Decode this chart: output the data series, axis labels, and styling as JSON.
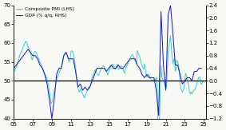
{
  "pmi_color": "#3ccfcf",
  "gdp_color": "#1414c8",
  "hline_y": 50,
  "ylim_left": [
    40,
    70
  ],
  "ylim_right": [
    -1.2,
    2.4
  ],
  "xticks": [
    2005,
    2007,
    2009,
    2011,
    2013,
    2015,
    2017,
    2019,
    2021,
    2023,
    2025
  ],
  "xticklabels": [
    "05",
    "07",
    "09",
    "11",
    "13",
    "15",
    "17",
    "19",
    "21",
    "23",
    "25"
  ],
  "yticks_left": [
    40,
    45,
    50,
    55,
    60,
    65,
    70
  ],
  "yticks_right": [
    -1.2,
    -0.8,
    -0.4,
    0.0,
    0.4,
    0.8,
    1.2,
    1.6,
    2.0,
    2.4
  ],
  "legend_entries": [
    "Composite PMI (LHS)",
    "GDP (% q/q, RHS)"
  ],
  "bg_color": "#f8f8f4",
  "pmi_x": [
    2005.0,
    2005.083,
    2005.167,
    2005.25,
    2005.333,
    2005.417,
    2005.5,
    2005.583,
    2005.667,
    2005.75,
    2005.833,
    2005.917,
    2006.0,
    2006.083,
    2006.167,
    2006.25,
    2006.333,
    2006.417,
    2006.5,
    2006.583,
    2006.667,
    2006.75,
    2006.833,
    2006.917,
    2007.0,
    2007.083,
    2007.167,
    2007.25,
    2007.333,
    2007.417,
    2007.5,
    2007.583,
    2007.667,
    2007.75,
    2007.833,
    2007.917,
    2008.0,
    2008.083,
    2008.167,
    2008.25,
    2008.333,
    2008.417,
    2008.5,
    2008.583,
    2008.667,
    2008.75,
    2008.833,
    2008.917,
    2009.0,
    2009.083,
    2009.167,
    2009.25,
    2009.333,
    2009.417,
    2009.5,
    2009.583,
    2009.667,
    2009.75,
    2009.833,
    2009.917,
    2010.0,
    2010.083,
    2010.167,
    2010.25,
    2010.333,
    2010.417,
    2010.5,
    2010.583,
    2010.667,
    2010.75,
    2010.833,
    2010.917,
    2011.0,
    2011.083,
    2011.167,
    2011.25,
    2011.333,
    2011.417,
    2011.5,
    2011.583,
    2011.667,
    2011.75,
    2011.833,
    2011.917,
    2012.0,
    2012.083,
    2012.167,
    2012.25,
    2012.333,
    2012.417,
    2012.5,
    2012.583,
    2012.667,
    2012.75,
    2012.833,
    2012.917,
    2013.0,
    2013.083,
    2013.167,
    2013.25,
    2013.333,
    2013.417,
    2013.5,
    2013.583,
    2013.667,
    2013.75,
    2013.833,
    2013.917,
    2014.0,
    2014.083,
    2014.167,
    2014.25,
    2014.333,
    2014.417,
    2014.5,
    2014.583,
    2014.667,
    2014.75,
    2014.833,
    2014.917,
    2015.0,
    2015.083,
    2015.167,
    2015.25,
    2015.333,
    2015.417,
    2015.5,
    2015.583,
    2015.667,
    2015.75,
    2015.833,
    2015.917,
    2016.0,
    2016.083,
    2016.167,
    2016.25,
    2016.333,
    2016.417,
    2016.5,
    2016.583,
    2016.667,
    2016.75,
    2016.833,
    2016.917,
    2017.0,
    2017.083,
    2017.167,
    2017.25,
    2017.333,
    2017.417,
    2017.5,
    2017.583,
    2017.667,
    2017.75,
    2017.833,
    2017.917,
    2018.0,
    2018.083,
    2018.167,
    2018.25,
    2018.333,
    2018.417,
    2018.5,
    2018.583,
    2018.667,
    2018.75,
    2018.833,
    2018.917,
    2019.0,
    2019.083,
    2019.167,
    2019.25,
    2019.333,
    2019.417,
    2019.5,
    2019.583,
    2019.667,
    2019.75,
    2019.833,
    2019.917,
    2020.0,
    2020.083,
    2020.167,
    2020.25,
    2020.333,
    2020.417,
    2020.5,
    2020.583,
    2020.667,
    2020.75,
    2020.833,
    2020.917,
    2021.0,
    2021.083,
    2021.167,
    2021.25,
    2021.333,
    2021.417,
    2021.5,
    2021.583,
    2021.667,
    2021.75,
    2021.833,
    2021.917,
    2022.0,
    2022.083,
    2022.167,
    2022.25,
    2022.333,
    2022.417,
    2022.5,
    2022.583,
    2022.667,
    2022.75,
    2022.833,
    2022.917,
    2023.0,
    2023.083,
    2023.167,
    2023.25,
    2023.333,
    2023.417,
    2023.5,
    2023.583,
    2023.667,
    2023.75,
    2023.833,
    2023.917,
    2024.0,
    2024.083,
    2024.167,
    2024.25,
    2024.333,
    2024.417,
    2024.5,
    2024.583,
    2024.667,
    2024.75,
    2024.833,
    2024.917,
    2025.0
  ],
  "pmi_y": [
    52.5,
    52.8,
    53.2,
    53.5,
    54.0,
    55.0,
    55.5,
    56.5,
    57.0,
    57.5,
    58.0,
    58.5,
    59.0,
    59.5,
    60.0,
    60.5,
    60.3,
    59.8,
    59.0,
    58.5,
    58.0,
    57.5,
    56.5,
    55.5,
    56.0,
    57.0,
    57.5,
    57.8,
    57.5,
    57.0,
    56.5,
    56.0,
    55.5,
    55.0,
    54.5,
    54.0,
    53.5,
    53.0,
    52.5,
    52.0,
    51.5,
    51.0,
    50.5,
    49.5,
    48.5,
    47.0,
    45.5,
    44.0,
    44.2,
    45.0,
    46.5,
    47.5,
    48.0,
    49.0,
    50.0,
    51.0,
    51.5,
    52.0,
    52.5,
    53.0,
    53.5,
    54.5,
    55.5,
    56.5,
    57.0,
    57.5,
    57.5,
    57.0,
    56.5,
    55.5,
    55.0,
    55.5,
    57.5,
    58.0,
    57.8,
    57.5,
    56.5,
    55.0,
    53.5,
    51.5,
    49.5,
    48.0,
    47.5,
    47.0,
    48.0,
    47.5,
    47.0,
    46.5,
    46.0,
    45.5,
    46.0,
    46.5,
    47.0,
    47.5,
    48.0,
    48.5,
    48.5,
    49.0,
    50.0,
    51.0,
    51.5,
    52.0,
    52.5,
    53.0,
    52.5,
    52.0,
    51.5,
    51.5,
    52.0,
    52.5,
    53.0,
    53.5,
    53.8,
    54.0,
    53.8,
    53.5,
    53.0,
    52.5,
    52.0,
    51.5,
    52.5,
    53.0,
    53.5,
    54.0,
    54.2,
    54.5,
    54.0,
    53.5,
    53.0,
    53.5,
    54.0,
    54.5,
    53.0,
    53.2,
    53.5,
    53.8,
    54.0,
    53.5,
    53.0,
    52.5,
    52.0,
    53.0,
    53.5,
    54.0,
    54.5,
    55.0,
    55.5,
    56.0,
    56.5,
    56.8,
    57.0,
    56.5,
    56.0,
    55.5,
    55.0,
    54.5,
    58.0,
    57.5,
    57.0,
    56.5,
    55.5,
    54.5,
    54.0,
    53.5,
    53.0,
    54.5,
    53.5,
    52.0,
    51.0,
    51.5,
    51.8,
    51.5,
    51.0,
    50.5,
    50.2,
    50.0,
    50.2,
    50.3,
    50.5,
    50.0,
    51.0,
    48.5,
    40.0,
    13.5,
    39.5,
    47.5,
    54.0,
    51.0,
    50.5,
    50.0,
    49.5,
    49.2,
    47.8,
    48.5,
    53.0,
    57.8,
    59.0,
    60.5,
    62.0,
    59.0,
    56.5,
    54.5,
    55.5,
    56.0,
    52.5,
    53.0,
    55.5,
    55.0,
    54.5,
    52.5,
    49.5,
    48.0,
    47.5,
    47.0,
    47.5,
    48.0,
    50.0,
    52.0,
    51.5,
    50.5,
    49.5,
    48.5,
    47.0,
    46.5,
    47.0,
    46.5,
    47.0,
    47.5,
    47.5,
    47.8,
    48.5,
    49.0,
    50.0,
    50.5,
    51.0,
    51.0,
    49.5,
    49.0,
    49.5,
    50.0,
    49.6
  ],
  "gdp_x": [
    2005.0,
    2005.25,
    2005.5,
    2005.75,
    2006.0,
    2006.25,
    2006.5,
    2006.75,
    2007.0,
    2007.25,
    2007.5,
    2007.75,
    2008.0,
    2008.25,
    2008.5,
    2008.75,
    2009.0,
    2009.25,
    2009.5,
    2009.75,
    2010.0,
    2010.25,
    2010.5,
    2010.75,
    2011.0,
    2011.25,
    2011.5,
    2011.75,
    2012.0,
    2012.25,
    2012.5,
    2012.75,
    2013.0,
    2013.25,
    2013.5,
    2013.75,
    2014.0,
    2014.25,
    2014.5,
    2014.75,
    2015.0,
    2015.25,
    2015.5,
    2015.75,
    2016.0,
    2016.25,
    2016.5,
    2016.75,
    2017.0,
    2017.25,
    2017.5,
    2017.75,
    2018.0,
    2018.25,
    2018.5,
    2018.75,
    2019.0,
    2019.25,
    2019.5,
    2019.75,
    2020.0,
    2020.25,
    2020.5,
    2020.75,
    2021.0,
    2021.25,
    2021.5,
    2021.75,
    2022.0,
    2022.25,
    2022.5,
    2022.75,
    2023.0,
    2023.25,
    2023.5,
    2023.75,
    2024.0,
    2024.25,
    2024.5,
    2024.75
  ],
  "gdp_y": [
    0.4,
    0.5,
    0.6,
    0.7,
    0.8,
    0.9,
    1.0,
    0.9,
    0.8,
    0.8,
    0.7,
    0.5,
    0.4,
    0.2,
    -0.1,
    -0.6,
    -1.2,
    -0.6,
    0.2,
    0.4,
    0.4,
    0.8,
    0.9,
    0.7,
    0.7,
    0.7,
    0.3,
    -0.2,
    -0.1,
    -0.3,
    -0.2,
    -0.3,
    -0.2,
    0.0,
    0.2,
    0.4,
    0.4,
    0.4,
    0.4,
    0.3,
    0.4,
    0.5,
    0.4,
    0.4,
    0.5,
    0.4,
    0.4,
    0.5,
    0.6,
    0.7,
    0.7,
    0.7,
    0.5,
    0.4,
    0.2,
    0.1,
    0.2,
    0.1,
    0.1,
    0.1,
    -0.3,
    -1.1,
    2.2,
    0.5,
    -0.3,
    2.1,
    2.4,
    1.5,
    0.5,
    0.5,
    0.2,
    -0.1,
    0.0,
    0.1,
    0.1,
    0.0,
    0.3,
    0.3,
    0.4,
    0.4
  ]
}
